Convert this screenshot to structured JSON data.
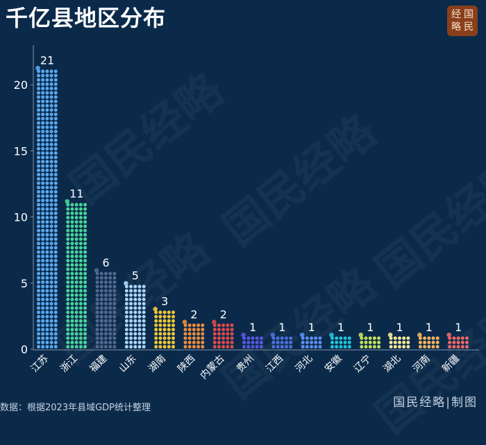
{
  "title": "千亿县地区分布",
  "logo": {
    "chars": [
      "经",
      "国",
      "略",
      "民"
    ]
  },
  "watermark": "国民经略",
  "source_note": "数据：根据2023年县域GDP统计整理",
  "credit": "国民经略|制图",
  "chart_data": {
    "type": "bar",
    "style": "stacked-dots",
    "title": "千亿县地区分布",
    "xlabel": "",
    "ylabel": "",
    "ylim": [
      0,
      23
    ],
    "yticks": [
      0,
      5,
      10,
      15,
      20
    ],
    "grid": false,
    "legend": "none",
    "categories": [
      "江苏",
      "浙江",
      "福建",
      "山东",
      "湖南",
      "陕西",
      "内蒙古",
      "贵州",
      "江西",
      "河北",
      "安徽",
      "辽宁",
      "湖北",
      "河南",
      "新疆"
    ],
    "values": [
      21,
      11,
      6,
      5,
      3,
      2,
      2,
      1,
      1,
      1,
      1,
      1,
      1,
      1,
      1
    ],
    "colors": [
      "#5aa9f0",
      "#49d49a",
      "#52688f",
      "#a9d5f7",
      "#f2c634",
      "#ee8c3a",
      "#e0484b",
      "#5b55e0",
      "#4d6fdc",
      "#5a8ff0",
      "#22c2d6",
      "#c2e05a",
      "#f4e79a",
      "#f2b45e",
      "#ee6666"
    ]
  }
}
